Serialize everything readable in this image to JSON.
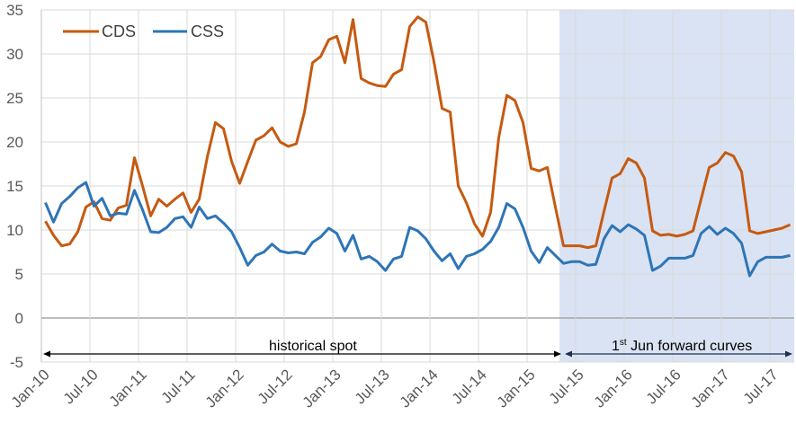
{
  "chart_data": {
    "type": "line",
    "title": "",
    "xlabel": "",
    "ylabel": "",
    "ylim": [
      -5,
      35
    ],
    "yticks": [
      35,
      30,
      25,
      20,
      15,
      10,
      5,
      0,
      -5
    ],
    "grid": true,
    "legend_position": "top-left, inside",
    "x_tick_labels": [
      "Jan-10",
      "Jul-10",
      "Jan-11",
      "Jul-11",
      "Jan-12",
      "Jul-12",
      "Jan-13",
      "Jul-13",
      "Jan-14",
      "Jul-14",
      "Jan-15",
      "Jul-15",
      "Jan-16",
      "Jul-16",
      "Jan-17",
      "Jul-17"
    ],
    "x_frequency": "monthly",
    "x_start": "Jan-10",
    "x_end": "Sep-17",
    "series": [
      {
        "name": "CDS",
        "color": "#C55A11",
        "values": [
          11.0,
          9.4,
          8.2,
          8.4,
          9.8,
          12.6,
          13.2,
          11.3,
          11.1,
          12.5,
          12.8,
          18.2,
          15.0,
          11.6,
          13.5,
          12.7,
          13.5,
          14.2,
          12.0,
          13.5,
          18.3,
          22.2,
          21.5,
          17.8,
          15.3,
          17.8,
          20.2,
          20.7,
          21.6,
          20.0,
          19.5,
          19.8,
          23.4,
          29.0,
          29.7,
          31.6,
          32.0,
          29.0,
          33.9,
          27.2,
          26.7,
          26.4,
          26.3,
          27.7,
          28.2,
          33.1,
          34.2,
          33.6,
          29.1,
          23.8,
          23.4,
          15.0,
          13.1,
          10.7,
          9.3,
          12.0,
          20.5,
          25.3,
          24.7,
          22.2,
          17.0,
          16.7,
          17.1,
          12.6,
          8.2,
          8.2,
          8.2,
          8.0,
          8.2,
          12.1,
          15.9,
          16.4,
          18.1,
          17.6,
          15.9,
          9.9,
          9.4,
          9.5,
          9.3,
          9.5,
          9.9,
          13.5,
          17.1,
          17.6,
          18.8,
          18.4,
          16.6,
          9.9,
          9.6,
          9.8,
          10.0,
          10.2,
          10.6
        ]
      },
      {
        "name": "CSS",
        "color": "#2E75B6",
        "values": [
          13.1,
          10.9,
          13.0,
          13.8,
          14.8,
          15.4,
          12.7,
          13.6,
          11.6,
          11.9,
          11.8,
          14.5,
          12.3,
          9.8,
          9.7,
          10.3,
          11.3,
          11.5,
          10.3,
          12.6,
          11.3,
          11.6,
          10.8,
          9.8,
          8.0,
          6.0,
          7.1,
          7.5,
          8.4,
          7.6,
          7.4,
          7.5,
          7.3,
          8.6,
          9.2,
          10.2,
          9.6,
          7.6,
          9.4,
          6.7,
          7.0,
          6.4,
          5.4,
          6.7,
          7.0,
          10.3,
          9.9,
          9.0,
          7.6,
          6.5,
          7.3,
          5.6,
          7.0,
          7.3,
          7.8,
          8.7,
          10.3,
          13.0,
          12.4,
          10.3,
          7.6,
          6.3,
          8.0,
          7.1,
          6.2,
          6.4,
          6.4,
          6.0,
          6.1,
          9.0,
          10.5,
          9.8,
          10.6,
          10.1,
          9.4,
          5.4,
          5.9,
          6.8,
          6.8,
          6.8,
          7.1,
          9.6,
          10.4,
          9.5,
          10.2,
          9.6,
          8.5,
          4.8,
          6.4,
          6.9,
          6.9,
          6.9,
          7.1
        ]
      }
    ],
    "shaded_region": {
      "from_index": 64,
      "to_index": 92,
      "color": "#DAE3F3"
    },
    "annotations": [
      {
        "text": "historical spot",
        "type": "double-arrow",
        "from_index": 0,
        "to_index": 63
      },
      {
        "text_sup": "st",
        "text_pre": "1",
        "text_post": " Jun forward curves",
        "type": "double-arrow",
        "from_index": 64,
        "to_index": 92
      }
    ]
  },
  "legend": {
    "cds": "CDS",
    "css": "CSS"
  },
  "annotations": {
    "historical": "historical spot",
    "forward_pre": "1",
    "forward_sup": "st",
    "forward_post": " Jun forward curves"
  }
}
